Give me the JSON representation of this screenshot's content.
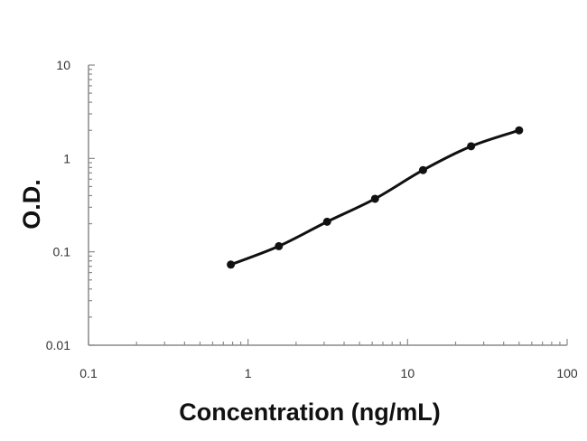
{
  "chart_data": {
    "type": "line",
    "xlabel": "Concentration (ng/mL)",
    "ylabel": "O.D.",
    "xscale": "log",
    "yscale": "log",
    "xlim": [
      0.1,
      100
    ],
    "ylim": [
      0.01,
      10
    ],
    "xticks": [
      {
        "value": 0.1,
        "label": "0.1"
      },
      {
        "value": 1,
        "label": "1"
      },
      {
        "value": 10,
        "label": "10"
      },
      {
        "value": 100,
        "label": "100"
      }
    ],
    "yticks": [
      {
        "value": 0.01,
        "label": "0.01"
      },
      {
        "value": 0.1,
        "label": "0.1"
      },
      {
        "value": 1,
        "label": "1"
      },
      {
        "value": 10,
        "label": "10"
      }
    ],
    "grid": false,
    "series": [
      {
        "x": [
          0.78,
          1.56,
          3.13,
          6.25,
          12.5,
          25,
          50
        ],
        "y": [
          0.073,
          0.115,
          0.21,
          0.37,
          0.75,
          1.35,
          2.0
        ]
      }
    ],
    "line_color": "#111111"
  }
}
